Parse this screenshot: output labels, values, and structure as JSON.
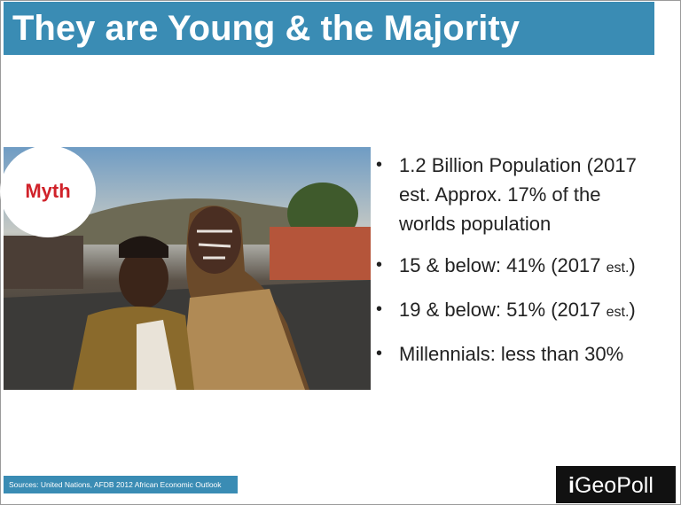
{
  "header": {
    "title": "They are Young & the Majority"
  },
  "image": {
    "badge": "Myth"
  },
  "bullets": [
    {
      "text": "1.2 Billion Population (2017 est. Approx. 17% of the worlds population"
    },
    {
      "text": "15 & below: 41% (2017 ",
      "small": "est.",
      "tail": ")"
    },
    {
      "text": "19 & below: 51% (2017 ",
      "small": "est.",
      "tail": ")"
    },
    {
      "text": "Millennials: less than 30%"
    }
  ],
  "footer": {
    "sources": "Sources: United Nations, AFDB 2012 African Economic Outlook",
    "logo_prefix": "i",
    "logo": "GeoPoll"
  }
}
